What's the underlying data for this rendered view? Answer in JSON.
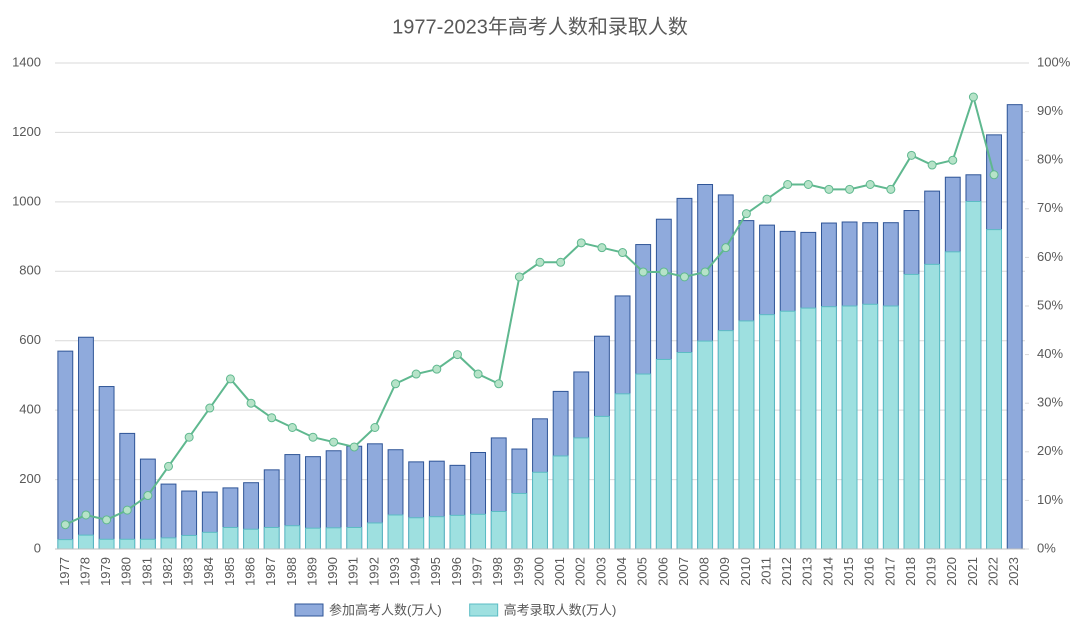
{
  "chart_data": {
    "type": "bar",
    "title": "1977-2023年高考人数和录取人数",
    "categories": [
      "1977",
      "1978",
      "1979",
      "1980",
      "1981",
      "1982",
      "1983",
      "1984",
      "1985",
      "1986",
      "1987",
      "1988",
      "1989",
      "1990",
      "1991",
      "1992",
      "1993",
      "1994",
      "1995",
      "1996",
      "1997",
      "1998",
      "1999",
      "2000",
      "2001",
      "2002",
      "2003",
      "2004",
      "2005",
      "2006",
      "2007",
      "2008",
      "2009",
      "2010",
      "2011",
      "2012",
      "2013",
      "2014",
      "2015",
      "2016",
      "2017",
      "2018",
      "2019",
      "2020",
      "2021",
      "2022",
      "2023"
    ],
    "series": [
      {
        "name": "参加高考人数(万人)",
        "type": "bar",
        "color": "#8faadc",
        "stroke": "#2f5597",
        "values": [
          570,
          610,
          468,
          333,
          259,
          187,
          167,
          164,
          176,
          191,
          228,
          272,
          266,
          283,
          296,
          303,
          286,
          251,
          253,
          241,
          278,
          320,
          288,
          375,
          454,
          510,
          613,
          729,
          877,
          950,
          1010,
          1050,
          1020,
          946,
          933,
          915,
          912,
          939,
          942,
          940,
          940,
          975,
          1031,
          1071,
          1078,
          1193,
          1280
        ]
      },
      {
        "name": "高考录取人数(万人)",
        "type": "bar",
        "color": "#9ee0e0",
        "stroke": "#5bbcc4",
        "values": [
          27,
          40,
          28,
          28,
          28,
          32,
          39,
          48,
          62,
          57,
          62,
          67,
          60,
          61,
          62,
          75,
          98,
          90,
          93,
          97,
          100,
          108,
          160,
          221,
          268,
          320,
          382,
          447,
          504,
          546,
          566,
          599,
          629,
          657,
          675,
          685,
          694,
          698,
          700,
          705,
          700,
          791,
          820,
          856,
          1001,
          920,
          null
        ]
      },
      {
        "type": "line",
        "axis": "y2",
        "color": "#5fb88f",
        "marker_color": "#b6e3c8",
        "values": [
          5,
          7,
          6,
          8,
          11,
          17,
          23,
          29,
          35,
          30,
          27,
          25,
          23,
          22,
          21,
          25,
          34,
          36,
          37,
          40,
          36,
          34,
          56,
          59,
          59,
          63,
          62,
          61,
          57,
          57,
          56,
          57,
          62,
          69,
          72,
          75,
          75,
          74,
          74,
          75,
          74,
          81,
          79,
          80,
          93,
          77,
          null
        ]
      }
    ],
    "ylim": [
      0,
      1400
    ],
    "yticks": [
      0,
      200,
      400,
      600,
      800,
      1000,
      1200,
      1400
    ],
    "y2lim": [
      0,
      100
    ],
    "y2ticks": [
      {
        "value": 0,
        "label": "0%"
      },
      {
        "value": 10,
        "label": "10%"
      },
      {
        "value": 20,
        "label": "20%"
      },
      {
        "value": 30,
        "label": "30%"
      },
      {
        "value": 40,
        "label": "40%"
      },
      {
        "value": 50,
        "label": "50%"
      },
      {
        "value": 60,
        "label": "60%"
      },
      {
        "value": 70,
        "label": "70%"
      },
      {
        "value": 80,
        "label": "80%"
      },
      {
        "value": 90,
        "label": "90%"
      },
      {
        "value": 100,
        "label": "100%"
      }
    ],
    "grid": true,
    "legend": "bottom"
  }
}
